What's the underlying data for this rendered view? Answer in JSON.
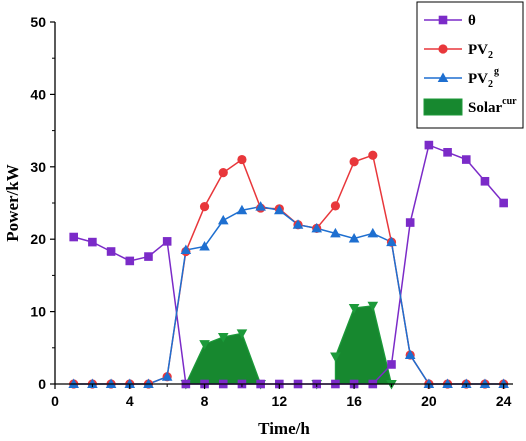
{
  "chart_data": {
    "type": "line",
    "title": "",
    "xlabel": "Time/h",
    "ylabel": "Power/kW",
    "xlim": [
      0,
      24.5
    ],
    "ylim": [
      0,
      50
    ],
    "xticks": [
      0,
      4,
      8,
      12,
      16,
      20,
      24
    ],
    "yticks": [
      0,
      10,
      20,
      30,
      40,
      50
    ],
    "grid": false,
    "legend_position": "top-right",
    "series": [
      {
        "key": "theta",
        "name": "θ",
        "color": "#7B2BC8",
        "marker": "square",
        "x": [
          1,
          2,
          3,
          4,
          5,
          6,
          7,
          8,
          9,
          10,
          11,
          12,
          13,
          14,
          15,
          16,
          17,
          18,
          19,
          20,
          21,
          22,
          23,
          24
        ],
        "y": [
          20.3,
          19.6,
          18.3,
          17.0,
          17.6,
          19.7,
          0,
          0,
          0,
          0,
          0,
          0,
          0,
          0,
          0,
          0,
          0,
          2.7,
          22.3,
          33.0,
          32.0,
          31.0,
          28.0,
          25.0
        ]
      },
      {
        "key": "pv2",
        "name": "PV",
        "sub": "2",
        "color": "#E8373B",
        "marker": "circle",
        "x": [
          1,
          2,
          3,
          4,
          5,
          6,
          7,
          8,
          9,
          10,
          11,
          12,
          13,
          14,
          15,
          16,
          17,
          18,
          19,
          20,
          21,
          22,
          23,
          24
        ],
        "y": [
          0,
          0,
          0,
          0,
          0,
          1.0,
          18.3,
          24.5,
          29.2,
          31.0,
          24.3,
          24.2,
          22.0,
          21.5,
          24.6,
          30.7,
          31.6,
          19.6,
          4.0,
          0,
          0,
          0,
          0,
          0
        ]
      },
      {
        "key": "pv2g",
        "name": "PV",
        "sub": "2",
        "sup": "g",
        "color": "#1E6FD0",
        "marker": "triangle-up",
        "x": [
          1,
          2,
          3,
          4,
          5,
          6,
          7,
          8,
          9,
          10,
          11,
          12,
          13,
          14,
          15,
          16,
          17,
          18,
          19,
          20,
          21,
          22,
          23,
          24
        ],
        "y": [
          0,
          0,
          0,
          0,
          0,
          1.0,
          18.5,
          19.0,
          22.6,
          24.0,
          24.5,
          24.0,
          22.0,
          21.5,
          20.8,
          20.1,
          20.8,
          19.6,
          4.0,
          0,
          0,
          0,
          0,
          0
        ]
      },
      {
        "key": "solar_cur",
        "name": "Solar",
        "sup": "cur",
        "color": "#1C9A3A",
        "fill": "#17882F",
        "marker": "triangle-down",
        "type": "area",
        "x": [
          7,
          8,
          9,
          10,
          11,
          14,
          15,
          16,
          17,
          18
        ],
        "y": [
          0,
          5.5,
          6.5,
          7.0,
          0,
          0,
          3.8,
          10.5,
          10.8,
          0
        ]
      }
    ]
  }
}
